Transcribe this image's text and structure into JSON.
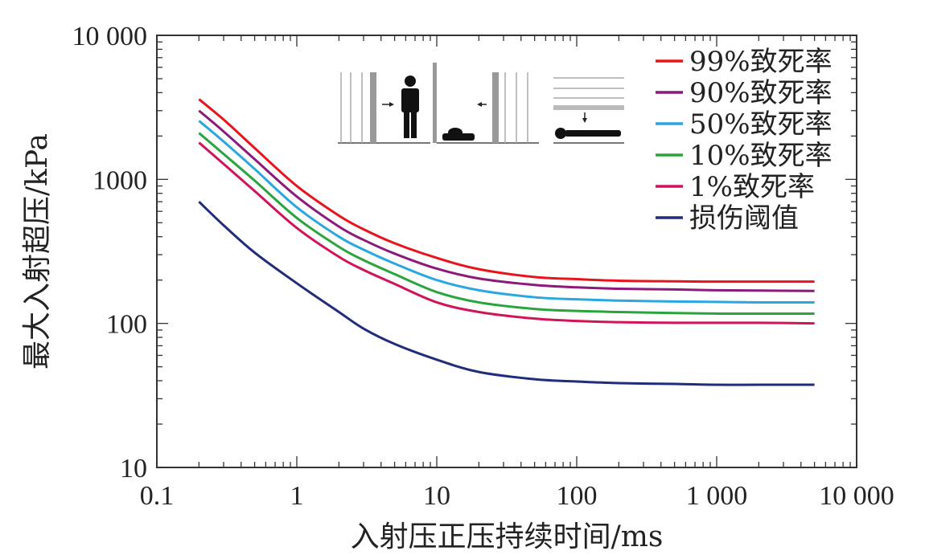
{
  "chart_data": {
    "type": "line",
    "xlabel": "入射压正压持续时间/ms",
    "ylabel": "最大入射超压/kPa",
    "x_scale": "log",
    "y_scale": "log",
    "xlim": [
      0.1,
      10000
    ],
    "ylim": [
      10,
      10000
    ],
    "x_ticks": [
      0.1,
      1,
      10,
      100,
      1000,
      10000
    ],
    "x_tick_labels": [
      "0.1",
      "1",
      "10",
      "100",
      "1 000",
      "10 000"
    ],
    "y_ticks": [
      10,
      100,
      1000,
      10000
    ],
    "y_tick_labels": [
      "10",
      "100",
      "1000",
      "10 000"
    ],
    "grid": false,
    "legend_position": "top-right",
    "x": [
      0.2,
      0.3,
      0.5,
      1,
      2,
      3,
      5,
      10,
      20,
      50,
      100,
      200,
      500,
      1000,
      2000,
      5000
    ],
    "series": [
      {
        "name": "99%致死率",
        "color": "#e8141c",
        "values": [
          3600,
          2600,
          1650,
          900,
          560,
          450,
          360,
          285,
          238,
          210,
          203,
          198,
          196,
          195,
          195,
          195
        ]
      },
      {
        "name": "90%致死率",
        "color": "#8c1a7a",
        "values": [
          3000,
          2150,
          1380,
          760,
          470,
          380,
          305,
          240,
          205,
          185,
          178,
          174,
          172,
          170,
          169,
          168
        ]
      },
      {
        "name": "50%致死率",
        "color": "#2aa6e0",
        "values": [
          2550,
          1830,
          1180,
          640,
          400,
          325,
          260,
          200,
          170,
          152,
          147,
          144,
          142,
          141,
          140,
          140
        ]
      },
      {
        "name": "10%致死率",
        "color": "#2aa43c",
        "values": [
          2100,
          1500,
          980,
          540,
          340,
          275,
          220,
          165,
          140,
          126,
          122,
          120,
          118,
          117,
          117,
          117
        ]
      },
      {
        "name": "1%致死率",
        "color": "#d1145a",
        "values": [
          1800,
          1280,
          830,
          460,
          290,
          235,
          188,
          140,
          120,
          108,
          104,
          102,
          101,
          101,
          101,
          100
        ]
      },
      {
        "name": "损伤阈值",
        "color": "#1f2d7a",
        "values": [
          700,
          480,
          310,
          190,
          120,
          92,
          72,
          56,
          46,
          41,
          39.5,
          38.5,
          38,
          37.5,
          37.5,
          37.5
        ]
      }
    ],
    "inset_icons": [
      "person-standing-near-wall-icon",
      "person-prone-near-wall-icon",
      "person-lying-under-blast-icon"
    ]
  }
}
